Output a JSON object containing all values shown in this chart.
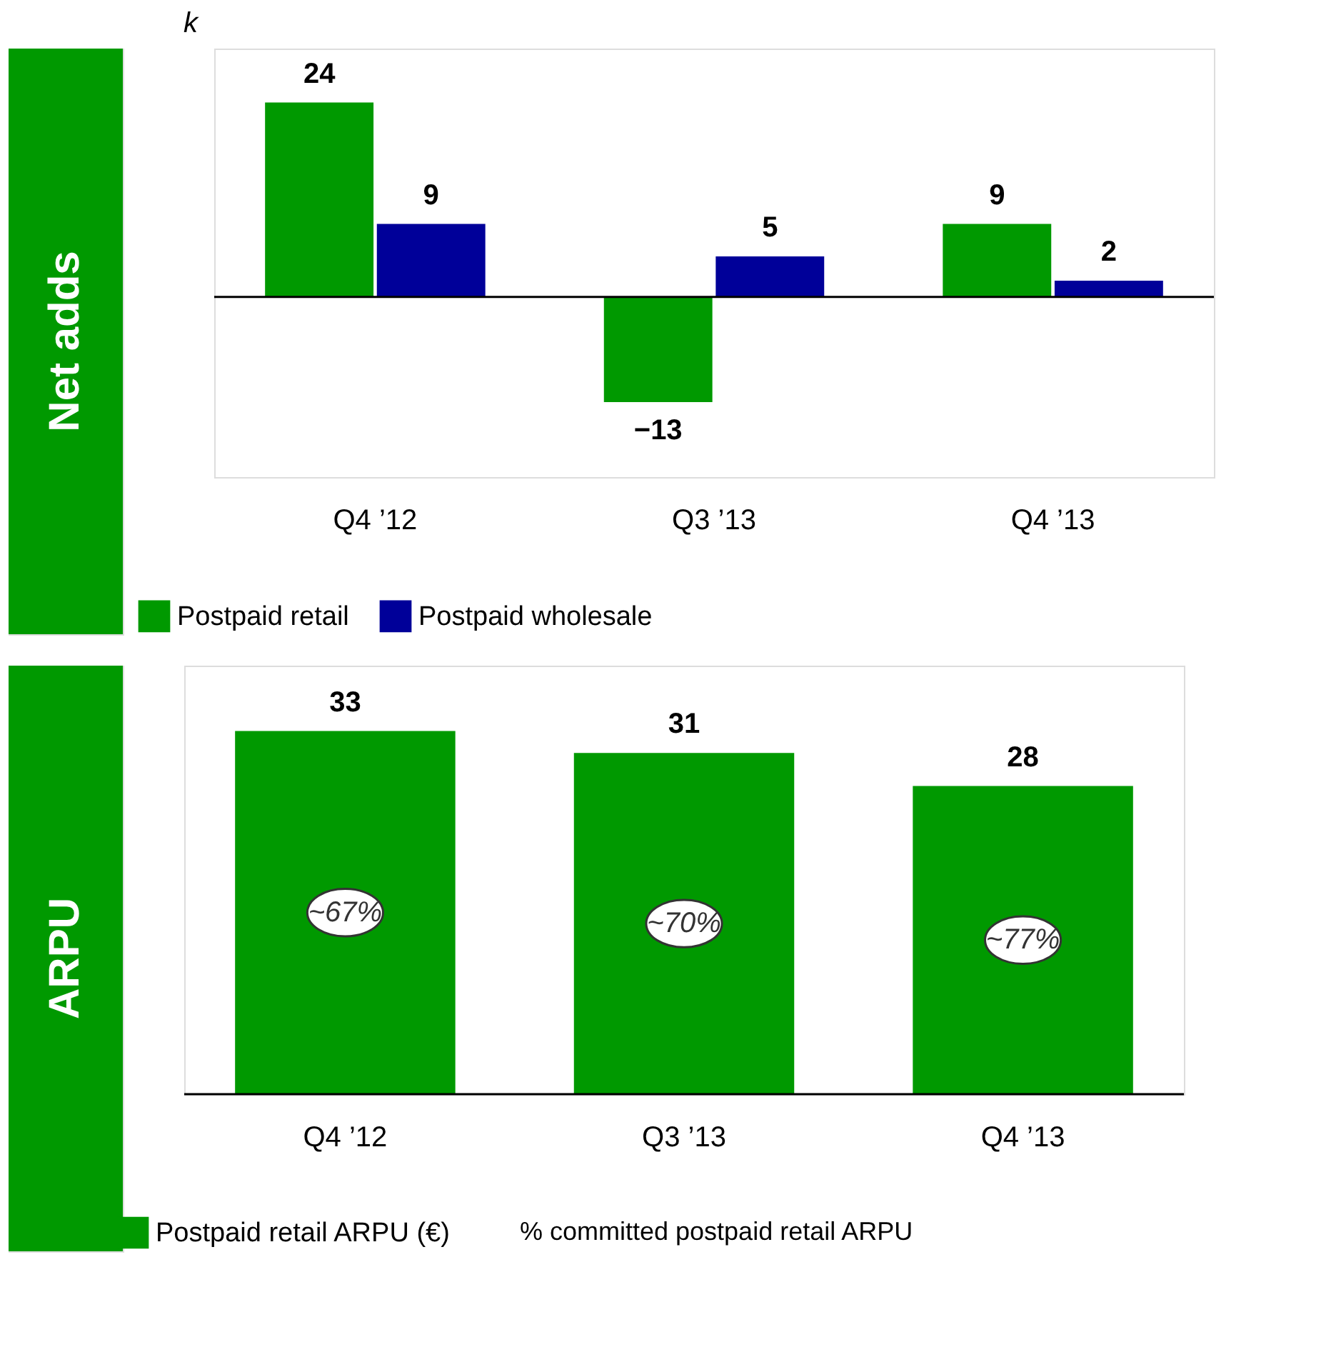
{
  "chart_data": [
    {
      "type": "bar",
      "title": "Net adds",
      "ylabel": "k",
      "categories": [
        "Q4 ’12",
        "Q3 ’13",
        "Q4 ’13"
      ],
      "series": [
        {
          "name": "Postpaid retail",
          "color": "#009900",
          "values": [
            24,
            -13,
            9
          ]
        },
        {
          "name": "Postpaid wholesale",
          "color": "#000099",
          "values": [
            9,
            5,
            2
          ]
        }
      ],
      "data_labels": true,
      "legend": "bottom"
    },
    {
      "type": "bar",
      "title": "ARPU",
      "categories": [
        "Q4 ’12",
        "Q3 ’13",
        "Q4 ’13"
      ],
      "series": [
        {
          "name": "Postpaid retail ARPU (€)",
          "color": "#009900",
          "values": [
            33,
            31,
            28
          ]
        }
      ],
      "data_labels": true,
      "legend": "bottom",
      "annotations": [
        "~67%",
        "~70%",
        "~77%",
        "% committed postpaid retail ARPU"
      ]
    }
  ]
}
